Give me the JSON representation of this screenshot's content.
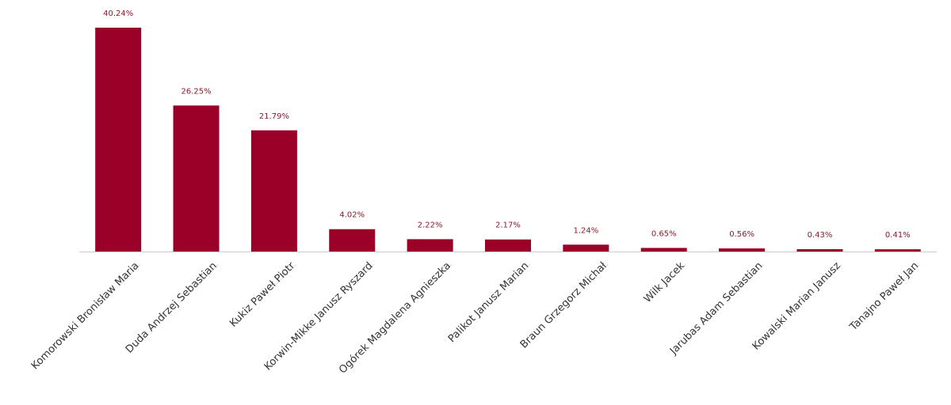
{
  "chart_data": {
    "type": "bar",
    "color": "#9b0029",
    "categories": [
      "Komorowski Bronisław Maria",
      "Duda Andrzej Sebastian",
      "Kukiz Paweł Piotr",
      "Korwin-Mikke Janusz Ryszard",
      "Ogórek Magdalena Agnieszka",
      "Palikot Janusz Marian",
      "Braun Grzegorz Michał",
      "Wilk Jacek",
      "Jarubas Adam Sebastian",
      "Kowalski Marian Janusz",
      "Tanajno Paweł Jan"
    ],
    "values": [
      40.24,
      26.25,
      21.79,
      4.02,
      2.22,
      2.17,
      1.24,
      0.65,
      0.56,
      0.43,
      0.41
    ],
    "value_labels": [
      "40.24%",
      "26.25%",
      "21.79%",
      "4.02%",
      "2.22%",
      "2.17%",
      "1.24%",
      "0.65%",
      "0.56%",
      "0.43%",
      "0.41%"
    ]
  }
}
